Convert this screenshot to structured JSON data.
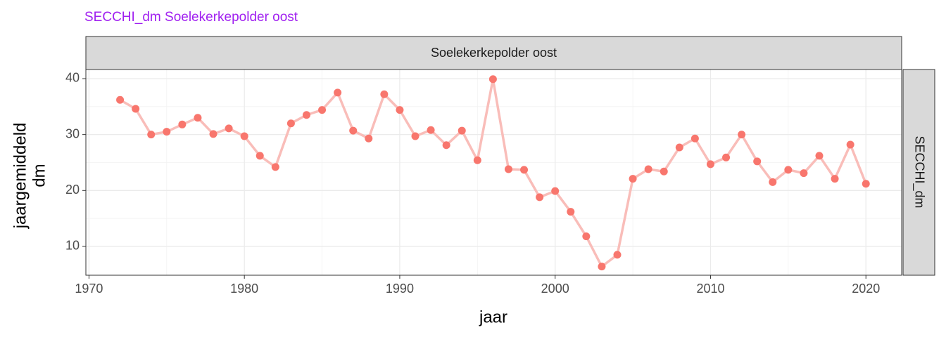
{
  "chart_data": {
    "type": "line",
    "title": "SECCHI_dm Soelekerkepolder oost",
    "strip_top": "Soelekerkepolder oost",
    "strip_right": "SECCHI_dm",
    "xlabel": "jaar",
    "ylabel_lines": [
      "jaargemiddeld",
      "dm"
    ],
    "x": [
      1972,
      1973,
      1974,
      1975,
      1976,
      1977,
      1978,
      1979,
      1980,
      1981,
      1982,
      1983,
      1984,
      1985,
      1986,
      1987,
      1988,
      1989,
      1990,
      1991,
      1992,
      1993,
      1994,
      1995,
      1996,
      1997,
      1998,
      1999,
      2000,
      2001,
      2002,
      2003,
      2004,
      2005,
      2006,
      2007,
      2008,
      2009,
      2010,
      2011,
      2012,
      2013,
      2014,
      2015,
      2016,
      2017,
      2018,
      2019,
      2020
    ],
    "series": [
      {
        "name": "SECCHI_dm",
        "color": "#f8766d",
        "line_color": "#f9bdb9",
        "values": [
          36.2,
          34.6,
          30.0,
          30.5,
          31.8,
          33.0,
          30.1,
          31.1,
          29.7,
          26.2,
          24.2,
          32.0,
          33.5,
          34.4,
          37.5,
          30.7,
          29.3,
          37.2,
          34.4,
          29.7,
          30.8,
          28.1,
          30.7,
          25.4,
          39.9,
          23.8,
          23.7,
          18.8,
          19.9,
          16.2,
          11.8,
          6.4,
          8.5,
          22.1,
          23.8,
          23.4,
          27.7,
          29.3,
          24.7,
          25.9,
          30.0,
          25.2,
          21.5,
          23.7,
          23.1,
          26.2,
          22.1,
          28.2,
          21.2
        ]
      }
    ],
    "xlim": [
      1969.8,
      2022.3
    ],
    "xticks": [
      1970,
      1980,
      1990,
      2000,
      2010,
      2020
    ],
    "ylim": [
      4.85,
      41.63
    ],
    "yticks": [
      10,
      20,
      30,
      40
    ],
    "grid": true
  }
}
